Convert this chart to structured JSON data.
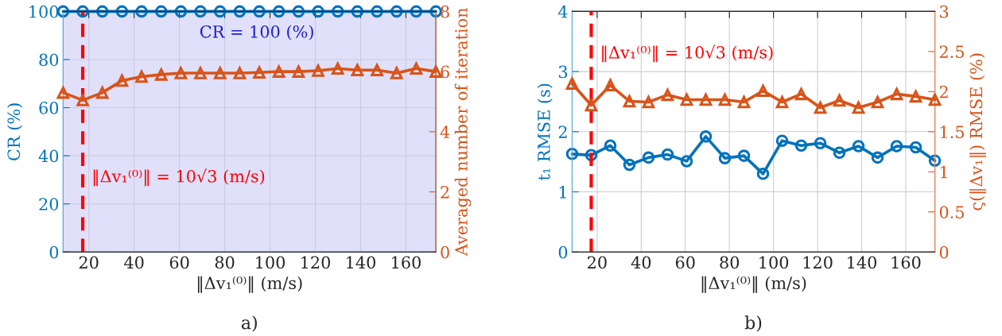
{
  "chart_data": [
    {
      "type": "line",
      "x": [
        8.66,
        17.32,
        25.98,
        34.64,
        43.3,
        51.96,
        60.62,
        69.28,
        77.94,
        86.6,
        95.26,
        103.92,
        112.58,
        121.24,
        129.9,
        138.56,
        147.22,
        155.88,
        164.54,
        173.21
      ],
      "xlabel": "‖Δv₁⁽⁰⁾‖ (m/s)",
      "ylabel": "CR (%)",
      "y2label": "Averaged number of iteration",
      "series": [
        {
          "color": "#0072bd",
          "marker": "circle",
          "values": [
            100,
            100,
            100,
            100,
            100,
            100,
            100,
            100,
            100,
            100,
            100,
            100,
            100,
            100,
            100,
            100,
            100,
            100,
            100,
            100
          ]
        },
        {
          "color": "#d95319",
          "marker": "triangle",
          "axis": "y2",
          "values": [
            5.3,
            5.05,
            5.3,
            5.7,
            5.83,
            5.9,
            5.95,
            5.95,
            5.95,
            5.95,
            5.97,
            6.0,
            6.0,
            6.03,
            6.1,
            6.05,
            6.05,
            5.95,
            6.1,
            6.0
          ]
        }
      ],
      "xlim": [
        8.66,
        173.21
      ],
      "xticks": [
        20,
        40,
        60,
        80,
        100,
        120,
        140,
        160
      ],
      "ylim": [
        0,
        100
      ],
      "yticks": [
        0,
        20,
        40,
        60,
        80,
        100
      ],
      "y2lim": [
        0,
        8
      ],
      "y2ticks": [
        0,
        2,
        4,
        6,
        8
      ],
      "ref_lines": [
        {
          "axis": "x",
          "value": 17.32,
          "color": "#ff0000",
          "line_style": "dashed"
        }
      ],
      "bands": [
        {
          "axis": "y",
          "from": 0,
          "to": 100,
          "color": "#e0e0fa"
        }
      ],
      "title": "a)",
      "annotations": [
        "CR = 100 (%)",
        {
          "text": "‖Δv₁⁽⁰⁾‖ = 10√3 (m/s)",
          "x": 17.32,
          "y": 31
        }
      ],
      "grid": true,
      "line_style": "solid"
    },
    {
      "type": "line",
      "x": [
        8.66,
        17.32,
        25.98,
        34.64,
        43.3,
        51.96,
        60.62,
        69.28,
        77.94,
        86.6,
        95.26,
        103.92,
        112.58,
        121.24,
        129.9,
        138.56,
        147.22,
        155.88,
        164.54,
        173.21
      ],
      "xlabel": "‖Δv₁⁽⁰⁾‖ (m/s)",
      "ylabel": "t₁ RMSE (s)",
      "y2label": "ς(‖Δv₁‖) RMSE (%)",
      "series": [
        {
          "color": "#0072bd",
          "marker": "circle",
          "values": [
            1.63,
            1.61,
            1.77,
            1.45,
            1.57,
            1.62,
            1.51,
            1.92,
            1.56,
            1.6,
            1.3,
            1.85,
            1.77,
            1.81,
            1.65,
            1.76,
            1.57,
            1.76,
            1.74,
            1.52
          ]
        },
        {
          "color": "#d95319",
          "marker": "triangle",
          "axis": "y2",
          "values": [
            2.1,
            1.83,
            2.08,
            1.88,
            1.87,
            1.96,
            1.9,
            1.9,
            1.9,
            1.87,
            2.01,
            1.87,
            1.97,
            1.8,
            1.89,
            1.8,
            1.87,
            1.97,
            1.94,
            1.9
          ]
        }
      ],
      "xlim": [
        8.66,
        173.21
      ],
      "xticks": [
        20,
        40,
        60,
        80,
        100,
        120,
        140,
        160
      ],
      "ylim": [
        0,
        4
      ],
      "yticks": [
        0,
        1,
        2,
        3,
        4
      ],
      "y2lim": [
        0,
        3
      ],
      "y2ticks": [
        0,
        0.5,
        1,
        1.5,
        2,
        2.5,
        3
      ],
      "ref_lines": [
        {
          "axis": "x",
          "value": 17.32,
          "color": "#ff0000",
          "line_style": "dashed"
        }
      ],
      "title": "b)",
      "annotations": [
        {
          "text": "‖Δv₁⁽⁰⁾‖ = 10√3 (m/s)",
          "x": 17.32,
          "y": 3.3
        }
      ],
      "grid": true,
      "line_style": "solid"
    }
  ]
}
